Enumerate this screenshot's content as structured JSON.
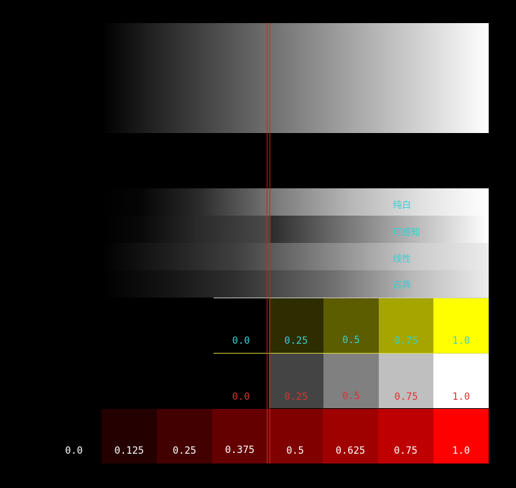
{
  "bands": [
    {
      "label": "纯白"
    },
    {
      "label": "可感知"
    },
    {
      "label": "线性"
    },
    {
      "label": "古典"
    }
  ],
  "yellow_row": {
    "colors": [
      "#000000",
      "#2d2d00",
      "#5c5c00",
      "#a5a500",
      "#ffff00"
    ],
    "labels": [
      "0.0",
      "0.25",
      "0.5",
      "0.75",
      "1.0"
    ],
    "label_color": "#33d1d1"
  },
  "gray_row": {
    "colors": [
      "#000000",
      "#444444",
      "#808080",
      "#bfbfbf",
      "#ffffff"
    ],
    "labels": [
      "0.0",
      "0.25",
      "0.5",
      "0.75",
      "1.0"
    ],
    "label_color": "#e03030"
  },
  "red_row": {
    "colors": [
      "#000000",
      "#240000",
      "#420000",
      "#650000",
      "#800000",
      "#9f0000",
      "#be0000",
      "#ff0000"
    ],
    "labels": [
      "0.0",
      "0.125",
      "0.25",
      "0.375",
      "0.5",
      "0.625",
      "0.75",
      "1.0"
    ],
    "label_color": "#ffffff"
  }
}
